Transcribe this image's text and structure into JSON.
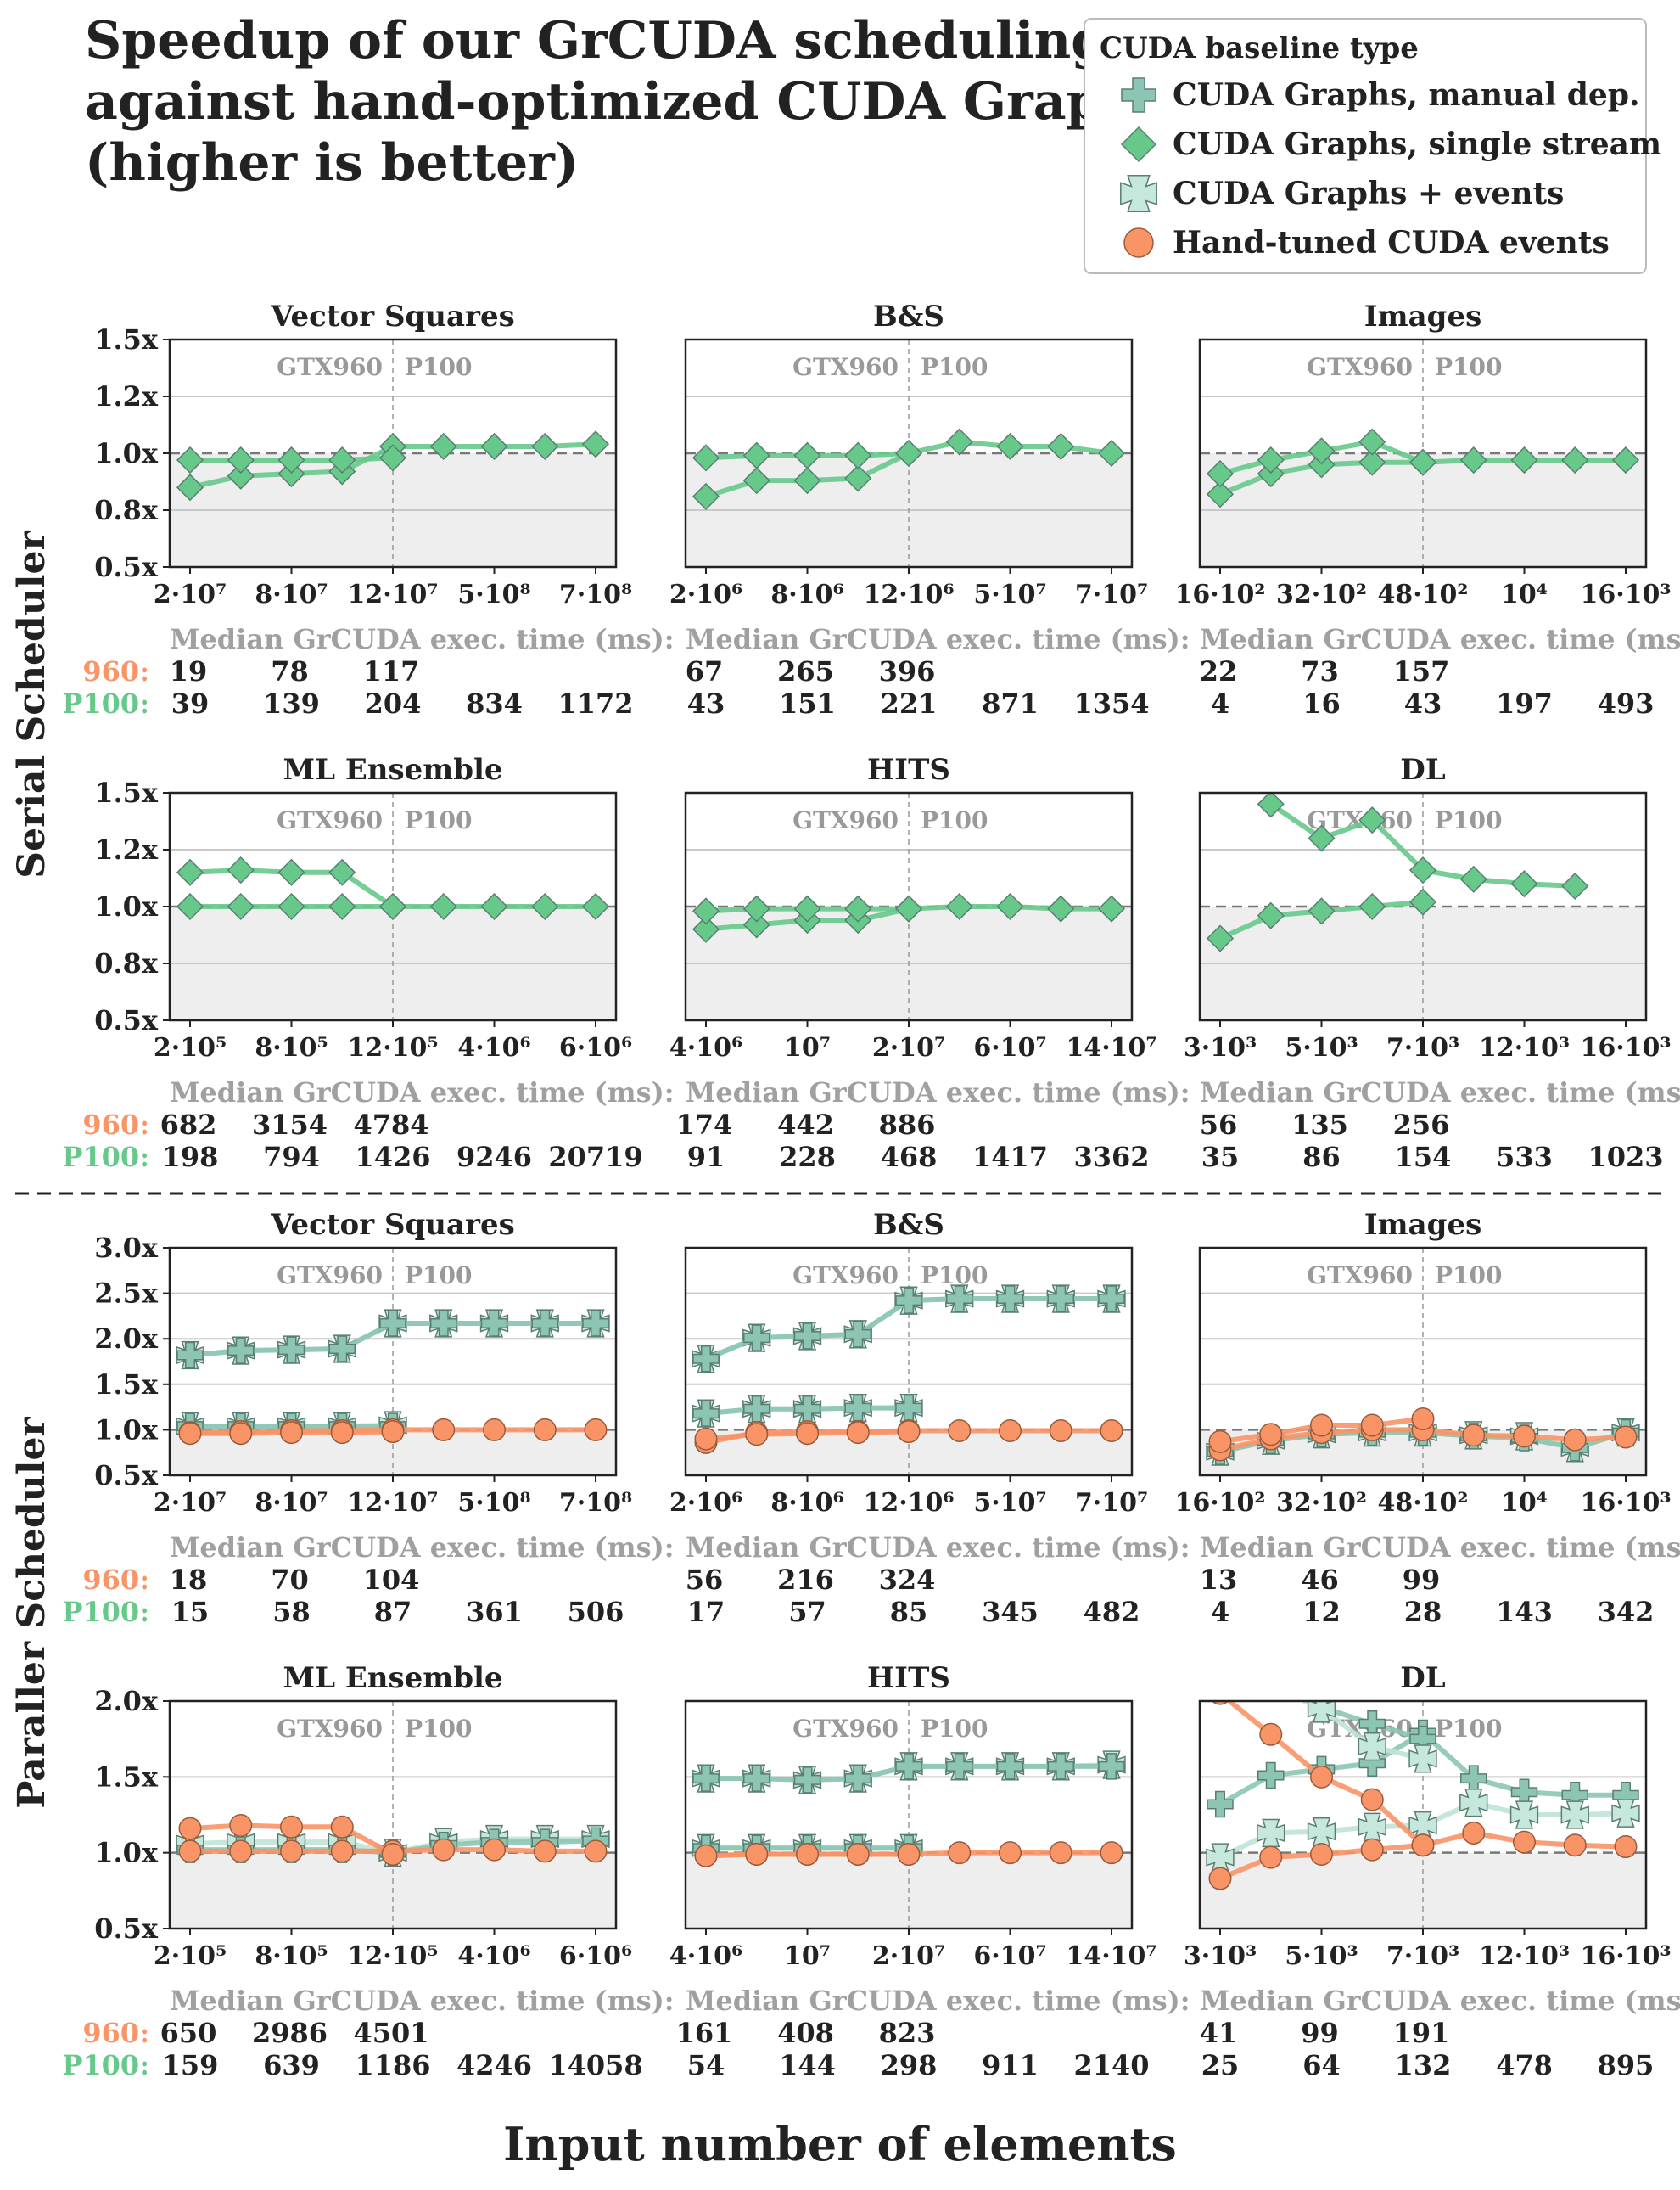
{
  "figure": {
    "title_lines": [
      "Speedup of our GrCUDA scheduling",
      "against hand-optimized CUDA Graphs",
      "(higher is better)"
    ],
    "xlabel": "Input number of elements",
    "row_labels": [
      "Serial Scheduler",
      "Paraller Scheduler"
    ],
    "gpu_labels": [
      "GTX960",
      "P100"
    ],
    "median_label": "Median GrCUDA exec. time (ms):",
    "row_960": "960:",
    "row_p100": "P100:"
  },
  "legend": {
    "title": "CUDA baseline type",
    "items": [
      {
        "label": "CUDA Graphs, manual dep.",
        "marker": "plus",
        "color": "#8cc5b3"
      },
      {
        "label": "CUDA Graphs, single stream",
        "marker": "diamond",
        "color": "#66c98a"
      },
      {
        "label": "CUDA Graphs + events",
        "marker": "x",
        "color": "#c6e7db"
      },
      {
        "label": "Hand-tuned CUDA events",
        "marker": "circle",
        "color": "#f99467"
      }
    ]
  },
  "colors": {
    "manual": "#8cc5b3",
    "single": "#66c98a",
    "events": "#c6e7db",
    "handtuned": "#f99467",
    "c960": "#f99467",
    "cp100": "#66c98a"
  },
  "chart_data": [
    {
      "type": "line",
      "title": "Vector Squares",
      "section": "serial",
      "ylim": [
        0.5,
        1.5
      ],
      "yticks": [
        "0.5x",
        "0.8x",
        "1.0x",
        "1.2x",
        "1.5x"
      ],
      "ytick_values": [
        0.5,
        0.75,
        1.0,
        1.25,
        1.5
      ],
      "xticks": [
        "2·10⁷",
        "8·10⁷",
        "12·10⁷",
        "5·10⁸",
        "7·10⁸"
      ],
      "series": [
        {
          "kind": "single",
          "values": [
            0.85,
            0.9,
            0.91,
            0.92,
            1.03,
            1.03,
            1.03,
            1.03,
            1.04
          ]
        },
        {
          "kind": "single",
          "values": [
            0.97,
            0.97,
            0.97,
            0.97,
            0.98
          ]
        }
      ],
      "median_960": [
        "19",
        "78",
        "117"
      ],
      "median_p100": [
        "39",
        "139",
        "204",
        "834",
        "1172"
      ]
    },
    {
      "type": "line",
      "title": "B&S",
      "section": "serial",
      "ylim": [
        0.5,
        1.5
      ],
      "yticks": [],
      "ytick_values": [
        0.5,
        0.75,
        1.0,
        1.25,
        1.5
      ],
      "xticks": [
        "2·10⁶",
        "8·10⁶",
        "12·10⁶",
        "5·10⁷",
        "7·10⁷"
      ],
      "series": [
        {
          "kind": "single",
          "values": [
            0.81,
            0.88,
            0.88,
            0.89,
            1.0,
            1.05,
            1.03,
            1.03,
            1.0
          ]
        },
        {
          "kind": "single",
          "values": [
            0.98,
            0.99,
            0.99,
            0.99,
            1.0
          ]
        }
      ],
      "median_960": [
        "67",
        "265",
        "396"
      ],
      "median_p100": [
        "43",
        "151",
        "221",
        "871",
        "1354"
      ]
    },
    {
      "type": "line",
      "title": "Images",
      "section": "serial",
      "ylim": [
        0.5,
        1.5
      ],
      "yticks": [],
      "ytick_values": [
        0.5,
        0.75,
        1.0,
        1.25,
        1.5
      ],
      "xticks": [
        "16·10²",
        "32·10²",
        "48·10²",
        "10⁴",
        "16·10³"
      ],
      "series": [
        {
          "kind": "single",
          "values": [
            0.82,
            0.91,
            0.95,
            0.96,
            0.96,
            0.97,
            0.97,
            0.97,
            0.97
          ]
        },
        {
          "kind": "single",
          "values": [
            0.91,
            0.97,
            1.01,
            1.05,
            0.96
          ]
        }
      ],
      "median_960": [
        "22",
        "73",
        "157"
      ],
      "median_p100": [
        "4",
        "16",
        "43",
        "197",
        "493"
      ]
    },
    {
      "type": "line",
      "title": "ML Ensemble",
      "section": "serial",
      "ylim": [
        0.5,
        1.5
      ],
      "yticks": [
        "0.5x",
        "0.8x",
        "1.0x",
        "1.2x",
        "1.5x"
      ],
      "ytick_values": [
        0.5,
        0.75,
        1.0,
        1.25,
        1.5
      ],
      "xticks": [
        "2·10⁵",
        "8·10⁵",
        "12·10⁵",
        "4·10⁶",
        "6·10⁶"
      ],
      "series": [
        {
          "kind": "single",
          "values": [
            1.0,
            1.0,
            1.0,
            1.0,
            1.0,
            1.0,
            1.0,
            1.0,
            1.0
          ]
        },
        {
          "kind": "single",
          "values": [
            1.15,
            1.16,
            1.15,
            1.15,
            1.0
          ]
        }
      ],
      "median_960": [
        "682",
        "3154",
        "4784"
      ],
      "median_p100": [
        "198",
        "794",
        "1426",
        "9246",
        "20719"
      ]
    },
    {
      "type": "line",
      "title": "HITS",
      "section": "serial",
      "ylim": [
        0.5,
        1.5
      ],
      "yticks": [],
      "ytick_values": [
        0.5,
        0.75,
        1.0,
        1.25,
        1.5
      ],
      "xticks": [
        "4·10⁶",
        "10⁷",
        "2·10⁷",
        "6·10⁷",
        "14·10⁷"
      ],
      "series": [
        {
          "kind": "single",
          "values": [
            0.9,
            0.92,
            0.94,
            0.94,
            0.99,
            1.0,
            1.0,
            0.99,
            0.99
          ]
        },
        {
          "kind": "single",
          "values": [
            0.98,
            0.99,
            0.99,
            0.99,
            0.99
          ]
        }
      ],
      "median_960": [
        "174",
        "442",
        "886"
      ],
      "median_p100": [
        "91",
        "228",
        "468",
        "1417",
        "3362"
      ]
    },
    {
      "type": "line",
      "title": "DL",
      "section": "serial",
      "ylim": [
        0.5,
        1.5
      ],
      "yticks": [],
      "ytick_values": [
        0.5,
        0.75,
        1.0,
        1.25,
        1.5
      ],
      "xticks": [
        "3·10³",
        "5·10³",
        "7·10³",
        "12·10³",
        "16·10³"
      ],
      "series": [
        {
          "kind": "single",
          "values": [
            0.86,
            0.96,
            0.98,
            1.0,
            1.02
          ]
        },
        {
          "kind": "single",
          "values": [
            null,
            1.45,
            1.3,
            1.38,
            1.16,
            1.12,
            1.1,
            1.09
          ]
        }
      ],
      "median_960": [
        "56",
        "135",
        "256"
      ],
      "median_p100": [
        "35",
        "86",
        "154",
        "533",
        "1023"
      ]
    },
    {
      "type": "line",
      "title": "Vector Squares",
      "section": "parallel",
      "ylim": [
        0.5,
        3.0
      ],
      "yticks": [
        "0.5x",
        "1.0x",
        "1.5x",
        "2.0x",
        "2.5x",
        "3.0x"
      ],
      "ytick_values": [
        0.5,
        1.0,
        1.5,
        2.0,
        2.5,
        3.0
      ],
      "xticks": [
        "2·10⁷",
        "8·10⁷",
        "12·10⁷",
        "5·10⁸",
        "7·10⁸"
      ],
      "series": [
        {
          "kind": "events",
          "values": [
            1.82,
            1.87,
            1.88,
            1.89,
            2.17,
            2.17,
            2.17,
            2.17,
            2.17
          ]
        },
        {
          "kind": "manual",
          "values": [
            1.82,
            1.87,
            1.88,
            1.89,
            2.17,
            2.17,
            2.17,
            2.17,
            2.17
          ]
        },
        {
          "kind": "events",
          "values": [
            1.04,
            1.04,
            1.04,
            1.04,
            1.05
          ]
        },
        {
          "kind": "manual",
          "values": [
            1.04,
            1.04,
            1.04,
            1.04,
            1.04
          ]
        },
        {
          "kind": "handtuned",
          "values": [
            0.97,
            0.98,
            0.99,
            0.99,
            1.0,
            1.0,
            1.0,
            1.0,
            1.0
          ]
        },
        {
          "kind": "handtuned",
          "values": [
            0.96,
            0.96,
            0.97,
            0.97,
            0.98
          ]
        }
      ],
      "median_960": [
        "18",
        "70",
        "104"
      ],
      "median_p100": [
        "15",
        "58",
        "87",
        "361",
        "506"
      ]
    },
    {
      "type": "line",
      "title": "B&S",
      "section": "parallel",
      "ylim": [
        0.5,
        3.0
      ],
      "yticks": [],
      "ytick_values": [
        0.5,
        1.0,
        1.5,
        2.0,
        2.5,
        3.0
      ],
      "xticks": [
        "2·10⁶",
        "8·10⁶",
        "12·10⁶",
        "5·10⁷",
        "7·10⁷"
      ],
      "series": [
        {
          "kind": "events",
          "values": [
            1.78,
            2.01,
            2.03,
            2.05,
            2.42,
            2.44,
            2.44,
            2.44,
            2.44
          ]
        },
        {
          "kind": "manual",
          "values": [
            1.78,
            2.01,
            2.03,
            2.05,
            2.42,
            2.44,
            2.44,
            2.44,
            2.44
          ]
        },
        {
          "kind": "events",
          "values": [
            1.18,
            1.23,
            1.23,
            1.24,
            1.24
          ]
        },
        {
          "kind": "manual",
          "values": [
            1.18,
            1.23,
            1.23,
            1.24,
            1.24
          ]
        },
        {
          "kind": "handtuned",
          "values": [
            0.86,
            0.97,
            0.98,
            0.98,
            0.99,
            0.99,
            0.99,
            0.99,
            0.99
          ]
        },
        {
          "kind": "handtuned",
          "values": [
            0.9,
            0.95,
            0.96,
            0.97,
            0.98
          ]
        }
      ],
      "median_960": [
        "56",
        "216",
        "324"
      ],
      "median_p100": [
        "17",
        "57",
        "85",
        "345",
        "482"
      ]
    },
    {
      "type": "line",
      "title": "Images",
      "section": "parallel",
      "ylim": [
        0.5,
        3.0
      ],
      "yticks": [],
      "ytick_values": [
        0.5,
        1.0,
        1.5,
        2.0,
        2.5,
        3.0
      ],
      "xticks": [
        "16·10²",
        "32·10²",
        "48·10²",
        "10⁴",
        "16·10³"
      ],
      "series": [
        {
          "kind": "events",
          "values": [
            0.76,
            0.88,
            0.95,
            0.97,
            0.97,
            0.94,
            0.93,
            0.8,
            0.97
          ]
        },
        {
          "kind": "manual",
          "values": [
            0.76,
            0.88,
            0.95,
            0.97,
            0.97,
            0.93,
            0.91,
            0.8,
            0.97
          ]
        },
        {
          "kind": "handtuned",
          "values": [
            0.78,
            0.9,
            0.97,
            1.0,
            1.0,
            0.94,
            0.93,
            0.89,
            0.92
          ]
        },
        {
          "kind": "handtuned",
          "values": [
            0.87,
            0.95,
            1.05,
            1.05,
            1.12
          ]
        }
      ],
      "median_960": [
        "13",
        "46",
        "99"
      ],
      "median_p100": [
        "4",
        "12",
        "28",
        "143",
        "342"
      ]
    },
    {
      "type": "line",
      "title": "ML Ensemble",
      "section": "parallel",
      "ylim": [
        0.5,
        2.0
      ],
      "yticks": [
        "0.5x",
        "1.0x",
        "1.5x",
        "2.0x"
      ],
      "ytick_values": [
        0.5,
        1.0,
        1.5,
        2.0
      ],
      "xticks": [
        "2·10⁵",
        "8·10⁵",
        "12·10⁵",
        "4·10⁶",
        "6·10⁶"
      ],
      "series": [
        {
          "kind": "events",
          "values": [
            1.06,
            1.07,
            1.07,
            1.07,
            1.0,
            1.07,
            1.09,
            1.09,
            1.09
          ]
        },
        {
          "kind": "manual",
          "values": [
            1.02,
            1.02,
            1.02,
            1.02,
            1.0,
            1.05,
            1.07,
            1.07,
            1.08
          ]
        },
        {
          "kind": "handtuned",
          "values": [
            1.01,
            1.01,
            1.01,
            1.01,
            1.01,
            1.02,
            1.02,
            1.01,
            1.01
          ]
        },
        {
          "kind": "handtuned",
          "values": [
            1.16,
            1.18,
            1.17,
            1.17,
            0.99
          ]
        }
      ],
      "median_960": [
        "650",
        "2986",
        "4501"
      ],
      "median_p100": [
        "159",
        "639",
        "1186",
        "4246",
        "14058"
      ]
    },
    {
      "type": "line",
      "title": "HITS",
      "section": "parallel",
      "ylim": [
        0.5,
        2.0
      ],
      "yticks": [],
      "ytick_values": [
        0.5,
        1.0,
        1.5,
        2.0
      ],
      "xticks": [
        "4·10⁶",
        "10⁷",
        "2·10⁷",
        "6·10⁷",
        "14·10⁷"
      ],
      "series": [
        {
          "kind": "events",
          "values": [
            1.49,
            1.49,
            1.48,
            1.49,
            1.57,
            1.57,
            1.57,
            1.57,
            1.58
          ]
        },
        {
          "kind": "manual",
          "values": [
            1.49,
            1.49,
            1.48,
            1.49,
            1.57,
            1.57,
            1.57,
            1.57,
            1.57
          ]
        },
        {
          "kind": "events",
          "values": [
            1.03,
            1.03,
            1.03,
            1.03,
            1.03
          ]
        },
        {
          "kind": "manual",
          "values": [
            1.03,
            1.03,
            1.03,
            1.03,
            1.03
          ]
        },
        {
          "kind": "handtuned",
          "values": [
            0.98,
            0.99,
            0.99,
            0.99,
            0.99,
            1.0,
            1.0,
            1.0,
            1.0
          ]
        },
        {
          "kind": "handtuned",
          "values": [
            0.98,
            0.99,
            0.99,
            0.99,
            0.99
          ]
        }
      ],
      "median_960": [
        "161",
        "408",
        "823"
      ],
      "median_p100": [
        "54",
        "144",
        "298",
        "911",
        "2140"
      ]
    },
    {
      "type": "line",
      "title": "DL",
      "section": "parallel",
      "ylim": [
        0.5,
        2.0
      ],
      "yticks": [],
      "ytick_values": [
        0.5,
        1.0,
        1.5,
        2.0
      ],
      "xticks": [
        "3·10³",
        "5·10³",
        "7·10³",
        "12·10³",
        "16·10³"
      ],
      "series": [
        {
          "kind": "manual",
          "values": [
            1.32,
            1.51,
            1.55,
            1.59,
            1.79,
            1.49,
            1.4,
            1.38,
            1.38
          ]
        },
        {
          "kind": "manual",
          "values": [
            null,
            null,
            1.96,
            1.85,
            1.75
          ]
        },
        {
          "kind": "events",
          "values": [
            0.97,
            1.13,
            1.14,
            1.17,
            1.18,
            1.33,
            1.25,
            1.25,
            1.26
          ]
        },
        {
          "kind": "events",
          "values": [
            null,
            2.1,
            1.95,
            1.7,
            1.62
          ]
        },
        {
          "kind": "handtuned",
          "values": [
            0.83,
            0.97,
            0.99,
            1.02,
            1.05,
            1.13,
            1.07,
            1.05,
            1.04
          ]
        },
        {
          "kind": "handtuned",
          "values": [
            2.05,
            1.78,
            1.5,
            1.35,
            1.05
          ]
        }
      ],
      "median_960": [
        "41",
        "99",
        "191"
      ],
      "median_p100": [
        "25",
        "64",
        "132",
        "478",
        "895"
      ]
    }
  ]
}
